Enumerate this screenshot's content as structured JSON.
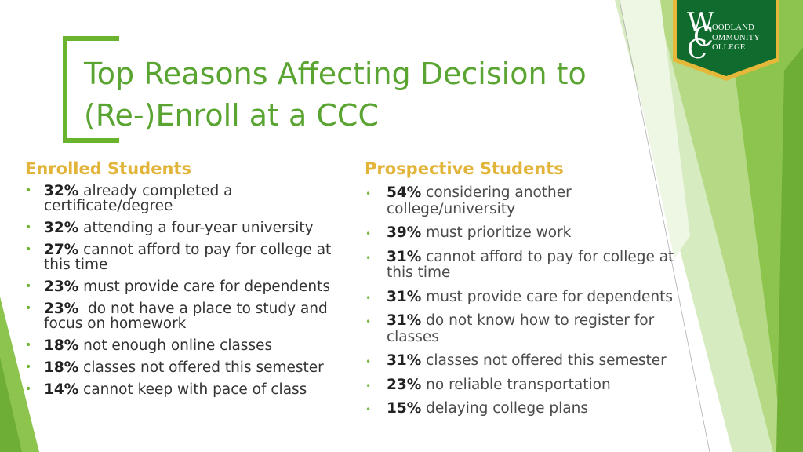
{
  "slide": {
    "title_lines": [
      "Top Reasons Affecting Decision to",
      "(Re-)Enroll at a CCC"
    ]
  },
  "logo": {
    "monogram": [
      "W",
      "C",
      "C"
    ],
    "lines": [
      "OODLAND",
      "OMMUNITY",
      "OLLEGE"
    ],
    "colors": {
      "badge": "#0f6b2e",
      "border": "#e5b83a"
    }
  },
  "colors": {
    "accent": "#6ab42d",
    "title": "#5aa432",
    "heading": "#e2b43a"
  },
  "enrolled": {
    "heading": "Enrolled Students",
    "items": [
      {
        "pct": "32%",
        "text": "already completed a certificate/degree"
      },
      {
        "pct": "32%",
        "text": "attending a four-year university"
      },
      {
        "pct": "27%",
        "text": "cannot afford to pay for college at this time"
      },
      {
        "pct": "23%",
        "text": "must provide care for dependents"
      },
      {
        "pct": "23%",
        "text": " do not have a place to study and focus on homework"
      },
      {
        "pct": "18%",
        "text": "not enough online classes"
      },
      {
        "pct": "18%",
        "text": "classes not offered this semester"
      },
      {
        "pct": "14%",
        "text": "cannot keep with pace of class"
      }
    ]
  },
  "prospective": {
    "heading": "Prospective Students",
    "items": [
      {
        "pct": "54%",
        "text": "considering another college/university"
      },
      {
        "pct": "39%",
        "text": "must prioritize work"
      },
      {
        "pct": "31%",
        "text": "cannot afford to pay for college at this time"
      },
      {
        "pct": "31%",
        "text": "must provide care for dependents"
      },
      {
        "pct": "31%",
        "text": "do not know how to register for classes"
      },
      {
        "pct": "31%",
        "text": "classes not offered this semester"
      },
      {
        "pct": "23%",
        "text": "no reliable transportation"
      },
      {
        "pct": "15%",
        "text": "delaying college plans"
      }
    ]
  }
}
